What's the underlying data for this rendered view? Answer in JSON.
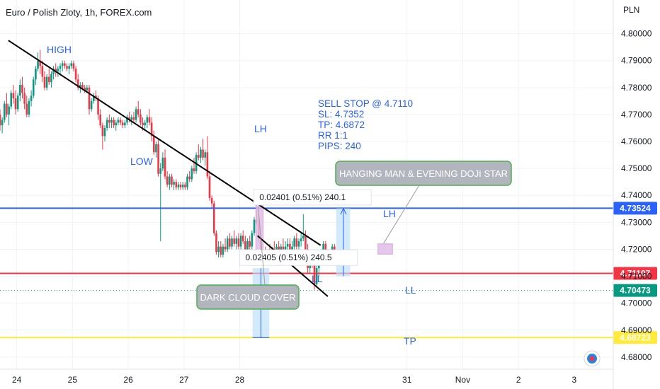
{
  "chart_data": {
    "type": "candlestick",
    "title": "Euro / Polish Zloty, 1h, FOREX.com",
    "price_axis_unit": "PLN",
    "y_ticks": [
      4.68,
      4.69,
      4.7,
      4.71,
      4.72,
      4.73,
      4.74,
      4.75,
      4.76,
      4.77,
      4.78,
      4.79,
      4.8
    ],
    "y_tick_labels": [
      "4.68000",
      "4.69000",
      "4.70000",
      "4.71000",
      "4.72000",
      "4.73000",
      "4.74000",
      "4.75000",
      "4.76000",
      "4.77000",
      "4.78000",
      "4.79000",
      "4.80000"
    ],
    "ylim": [
      4.6755,
      4.8125
    ],
    "x_ticks": [
      {
        "label": "24",
        "day": 24
      },
      {
        "label": "25",
        "day": 25
      },
      {
        "label": "26",
        "day": 26
      },
      {
        "label": "27",
        "day": 27
      },
      {
        "label": "28",
        "day": 28
      },
      {
        "label": "31",
        "day": 31
      },
      {
        "label": "Nov",
        "day": 32
      },
      {
        "label": "2",
        "day": 33
      },
      {
        "label": "3",
        "day": 34
      }
    ],
    "xlim": [
      23.7,
      34.7
    ],
    "price_lines": [
      {
        "name": "upper",
        "value": 4.73524,
        "label": "4.73524",
        "color": "#2962ff"
      },
      {
        "name": "sell-stop",
        "value": 4.71107,
        "label": "4.71107",
        "color": "#f23645"
      },
      {
        "name": "last",
        "value": 4.70473,
        "label": "4.70473",
        "color": "#089981"
      },
      {
        "name": "target",
        "value": 4.68723,
        "label": "4.68723",
        "color": "#ffeb3b"
      }
    ],
    "candles": [
      [
        23.7,
        4.77,
        4.772,
        4.764,
        4.766
      ],
      [
        23.74,
        4.766,
        4.769,
        4.763,
        4.768
      ],
      [
        23.78,
        4.768,
        4.775,
        4.767,
        4.774
      ],
      [
        23.82,
        4.774,
        4.778,
        4.769,
        4.77
      ],
      [
        23.86,
        4.77,
        4.774,
        4.766,
        4.773
      ],
      [
        23.9,
        4.773,
        4.779,
        4.772,
        4.778
      ],
      [
        23.94,
        4.778,
        4.781,
        4.774,
        4.776
      ],
      [
        23.98,
        4.776,
        4.779,
        4.77,
        4.772
      ],
      [
        24.02,
        4.772,
        4.778,
        4.771,
        4.777
      ],
      [
        24.06,
        4.777,
        4.783,
        4.775,
        4.781
      ],
      [
        24.1,
        4.781,
        4.784,
        4.776,
        4.778
      ],
      [
        24.14,
        4.778,
        4.78,
        4.772,
        4.774
      ],
      [
        24.18,
        4.774,
        4.777,
        4.769,
        4.77
      ],
      [
        24.22,
        4.77,
        4.776,
        4.769,
        4.775
      ],
      [
        24.26,
        4.775,
        4.779,
        4.773,
        4.777
      ],
      [
        24.3,
        4.777,
        4.784,
        4.776,
        4.783
      ],
      [
        24.34,
        4.783,
        4.788,
        4.781,
        4.787
      ],
      [
        24.38,
        4.787,
        4.793,
        4.786,
        4.79
      ],
      [
        24.42,
        4.79,
        4.794,
        4.785,
        4.788
      ],
      [
        24.46,
        4.788,
        4.79,
        4.782,
        4.784
      ],
      [
        24.5,
        4.784,
        4.786,
        4.779,
        4.78
      ],
      [
        24.54,
        4.78,
        4.785,
        4.779,
        4.784
      ],
      [
        24.58,
        4.784,
        4.787,
        4.781,
        4.782
      ],
      [
        24.62,
        4.782,
        4.786,
        4.78,
        4.785
      ],
      [
        24.66,
        4.785,
        4.788,
        4.783,
        4.787
      ],
      [
        24.7,
        4.787,
        4.789,
        4.784,
        4.786
      ],
      [
        24.74,
        4.786,
        4.788,
        4.784,
        4.787
      ],
      [
        24.78,
        4.787,
        4.789,
        4.785,
        4.788
      ],
      [
        24.82,
        4.788,
        4.79,
        4.786,
        4.789
      ],
      [
        24.86,
        4.789,
        4.79,
        4.787,
        4.788
      ],
      [
        24.9,
        4.788,
        4.789,
        4.786,
        4.787
      ],
      [
        24.94,
        4.787,
        4.789,
        4.785,
        4.788
      ],
      [
        24.98,
        4.788,
        4.79,
        4.787,
        4.789
      ],
      [
        25.02,
        4.789,
        4.79,
        4.786,
        4.787
      ],
      [
        25.06,
        4.787,
        4.788,
        4.782,
        4.783
      ],
      [
        25.1,
        4.783,
        4.785,
        4.779,
        4.78
      ],
      [
        25.14,
        4.78,
        4.782,
        4.778,
        4.781
      ],
      [
        25.18,
        4.781,
        4.782,
        4.779,
        4.78
      ],
      [
        25.22,
        4.78,
        4.781,
        4.778,
        4.779
      ],
      [
        25.26,
        4.779,
        4.781,
        4.778,
        4.78
      ],
      [
        25.3,
        4.78,
        4.781,
        4.77,
        4.772
      ],
      [
        25.34,
        4.772,
        4.776,
        4.771,
        4.775
      ],
      [
        25.38,
        4.775,
        4.778,
        4.774,
        4.777
      ],
      [
        25.42,
        4.777,
        4.779,
        4.775,
        4.776
      ],
      [
        25.46,
        4.776,
        4.777,
        4.768,
        4.77
      ],
      [
        25.5,
        4.77,
        4.772,
        4.765,
        4.766
      ],
      [
        25.54,
        4.766,
        4.767,
        4.757,
        4.762
      ],
      [
        25.58,
        4.762,
        4.766,
        4.76,
        4.765
      ],
      [
        25.62,
        4.765,
        4.769,
        4.764,
        4.768
      ],
      [
        25.66,
        4.768,
        4.77,
        4.765,
        4.767
      ],
      [
        25.7,
        4.767,
        4.769,
        4.765,
        4.768
      ],
      [
        25.74,
        4.768,
        4.769,
        4.765,
        4.766
      ],
      [
        25.78,
        4.766,
        4.768,
        4.764,
        4.767
      ],
      [
        25.82,
        4.767,
        4.769,
        4.766,
        4.768
      ],
      [
        25.86,
        4.768,
        4.769,
        4.766,
        4.767
      ],
      [
        25.9,
        4.767,
        4.768,
        4.765,
        4.766
      ],
      [
        25.94,
        4.766,
        4.768,
        4.765,
        4.767
      ],
      [
        25.98,
        4.767,
        4.77,
        4.766,
        4.769
      ],
      [
        26.02,
        4.769,
        4.771,
        4.767,
        4.768
      ],
      [
        26.06,
        4.768,
        4.77,
        4.766,
        4.769
      ],
      [
        26.1,
        4.769,
        4.771,
        4.767,
        4.768
      ],
      [
        26.14,
        4.768,
        4.773,
        4.767,
        4.772
      ],
      [
        26.18,
        4.772,
        4.775,
        4.769,
        4.77
      ],
      [
        26.22,
        4.77,
        4.772,
        4.766,
        4.767
      ],
      [
        26.26,
        4.767,
        4.769,
        4.764,
        4.766
      ],
      [
        26.3,
        4.766,
        4.768,
        4.764,
        4.767
      ],
      [
        26.34,
        4.767,
        4.77,
        4.765,
        4.769
      ],
      [
        26.38,
        4.769,
        4.772,
        4.766,
        4.767
      ],
      [
        26.42,
        4.767,
        4.769,
        4.76,
        4.762
      ],
      [
        26.46,
        4.762,
        4.764,
        4.755,
        4.756
      ],
      [
        26.5,
        4.756,
        4.76,
        4.754,
        4.759
      ],
      [
        26.54,
        4.759,
        4.761,
        4.747,
        4.748
      ],
      [
        26.58,
        4.748,
        4.752,
        4.723,
        4.75
      ],
      [
        26.62,
        4.75,
        4.756,
        4.749,
        4.754
      ],
      [
        26.66,
        4.754,
        4.757,
        4.746,
        4.747
      ],
      [
        26.7,
        4.747,
        4.749,
        4.743,
        4.744
      ],
      [
        26.74,
        4.744,
        4.748,
        4.742,
        4.747
      ],
      [
        26.78,
        4.747,
        4.748,
        4.743,
        4.744
      ],
      [
        26.82,
        4.744,
        4.746,
        4.742,
        4.745
      ],
      [
        26.86,
        4.745,
        4.746,
        4.742,
        4.743
      ],
      [
        26.9,
        4.743,
        4.745,
        4.742,
        4.744
      ],
      [
        26.94,
        4.744,
        4.745,
        4.742,
        4.743
      ],
      [
        26.98,
        4.743,
        4.745,
        4.742,
        4.744
      ],
      [
        27.02,
        4.744,
        4.745,
        4.742,
        4.743
      ],
      [
        27.06,
        4.743,
        4.748,
        4.742,
        4.747
      ],
      [
        27.1,
        4.747,
        4.749,
        4.745,
        4.746
      ],
      [
        27.14,
        4.746,
        4.751,
        4.745,
        4.75
      ],
      [
        27.18,
        4.75,
        4.754,
        4.748,
        4.749
      ],
      [
        27.22,
        4.749,
        4.756,
        4.748,
        4.755
      ],
      [
        27.26,
        4.755,
        4.759,
        4.753,
        4.754
      ],
      [
        27.3,
        4.754,
        4.758,
        4.752,
        4.757
      ],
      [
        27.34,
        4.757,
        4.761,
        4.753,
        4.754
      ],
      [
        27.38,
        4.754,
        4.757,
        4.751,
        4.756
      ],
      [
        27.42,
        4.756,
        4.762,
        4.746,
        4.747
      ],
      [
        27.46,
        4.747,
        4.749,
        4.738,
        4.739
      ],
      [
        27.5,
        4.739,
        4.74,
        4.735,
        4.737
      ],
      [
        27.54,
        4.737,
        4.738,
        4.725,
        4.726
      ],
      [
        27.58,
        4.726,
        4.727,
        4.718,
        4.719
      ],
      [
        27.62,
        4.719,
        4.723,
        4.717,
        4.721
      ],
      [
        27.66,
        4.721,
        4.723,
        4.717,
        4.718
      ],
      [
        27.7,
        4.718,
        4.722,
        4.717,
        4.721
      ],
      [
        27.74,
        4.721,
        4.724,
        4.719,
        4.72
      ],
      [
        27.78,
        4.72,
        4.725,
        4.719,
        4.724
      ],
      [
        27.82,
        4.724,
        4.726,
        4.72,
        4.721
      ],
      [
        27.86,
        4.721,
        4.725,
        4.72,
        4.724
      ],
      [
        27.9,
        4.724,
        4.727,
        4.721,
        4.722
      ],
      [
        27.94,
        4.722,
        4.725,
        4.72,
        4.724
      ],
      [
        27.98,
        4.724,
        4.726,
        4.72,
        4.721
      ],
      [
        28.02,
        4.721,
        4.726,
        4.72,
        4.725
      ],
      [
        28.06,
        4.725,
        4.727,
        4.722,
        4.723
      ],
      [
        28.1,
        4.723,
        4.725,
        4.719,
        4.72
      ],
      [
        28.14,
        4.72,
        4.724,
        4.719,
        4.723
      ],
      [
        28.18,
        4.723,
        4.725,
        4.72,
        4.721
      ],
      [
        28.22,
        4.721,
        4.727,
        4.72,
        4.726
      ],
      [
        28.26,
        4.726,
        4.732,
        4.725,
        4.731
      ],
      [
        28.3,
        4.731,
        4.737,
        4.729,
        4.73
      ],
      [
        28.34,
        4.73,
        4.732,
        4.723,
        4.724
      ],
      [
        28.38,
        4.724,
        4.726,
        4.714,
        4.716
      ],
      [
        28.42,
        4.716,
        4.72,
        4.714,
        4.719
      ],
      [
        28.46,
        4.719,
        4.721,
        4.715,
        4.716
      ],
      [
        28.5,
        4.716,
        4.72,
        4.715,
        4.719
      ],
      [
        28.54,
        4.719,
        4.722,
        4.717,
        4.718
      ],
      [
        28.58,
        4.718,
        4.721,
        4.715,
        4.72
      ],
      [
        28.62,
        4.72,
        4.723,
        4.718,
        4.719
      ],
      [
        28.66,
        4.719,
        4.722,
        4.717,
        4.721
      ],
      [
        28.7,
        4.721,
        4.723,
        4.718,
        4.719
      ],
      [
        28.74,
        4.719,
        4.722,
        4.717,
        4.721
      ],
      [
        28.78,
        4.721,
        4.724,
        4.719,
        4.72
      ],
      [
        28.82,
        4.72,
        4.723,
        4.718,
        4.721
      ],
      [
        28.86,
        4.721,
        4.724,
        4.719,
        4.722
      ],
      [
        28.9,
        4.722,
        4.724,
        4.719,
        4.72
      ],
      [
        28.94,
        4.72,
        4.723,
        4.718,
        4.721
      ],
      [
        28.98,
        4.721,
        4.725,
        4.72,
        4.724
      ],
      [
        29.02,
        4.724,
        4.726,
        4.72,
        4.721
      ],
      [
        29.06,
        4.721,
        4.724,
        4.72,
        4.723
      ],
      [
        29.1,
        4.723,
        4.726,
        4.721,
        4.724
      ],
      [
        29.14,
        4.724,
        4.733,
        4.723,
        4.725
      ],
      [
        29.18,
        4.725,
        4.727,
        4.719,
        4.72
      ],
      [
        29.22,
        4.72,
        4.722,
        4.711,
        4.713
      ],
      [
        29.26,
        4.713,
        4.717,
        4.711,
        4.716
      ],
      [
        29.3,
        4.716,
        4.718,
        4.713,
        4.714
      ],
      [
        29.34,
        4.714,
        4.716,
        4.705,
        4.707
      ],
      [
        29.38,
        4.707,
        4.714,
        4.706,
        4.713
      ],
      [
        29.42,
        4.713,
        4.716,
        4.71,
        4.715
      ],
      [
        29.46,
        4.715,
        4.72,
        4.714,
        4.719
      ],
      [
        29.5,
        4.719,
        4.723,
        4.717,
        4.722
      ],
      [
        29.54,
        4.722,
        4.723,
        4.716,
        4.717
      ],
      [
        29.58,
        4.717,
        4.72,
        4.715,
        4.716
      ],
      [
        29.62,
        4.716,
        4.719,
        4.714,
        4.718
      ],
      [
        29.66,
        4.718,
        4.722,
        4.717,
        4.721
      ],
      [
        29.7,
        4.721,
        4.722,
        4.716,
        4.717
      ],
      [
        29.74,
        4.717,
        4.719,
        4.715,
        4.716
      ],
      [
        29.78,
        4.716,
        4.718,
        4.715,
        4.717
      ],
      [
        29.82,
        4.717,
        4.719,
        4.716,
        4.718
      ],
      [
        29.86,
        4.718,
        4.719,
        4.715,
        4.717
      ],
      [
        29.9,
        4.717,
        4.718,
        4.716,
        4.7175
      ],
      [
        29.94,
        4.7175,
        4.718,
        4.716,
        4.717
      ],
      [
        29.98,
        4.717,
        4.718,
        4.716,
        4.7175
      ]
    ],
    "annotations": {
      "high": "HIGH",
      "low": "LOW",
      "lh1": "LH",
      "lh2": "LH",
      "ll1": "LL",
      "ll2": "LL",
      "tp": "TP",
      "trade_note": [
        "SELL STOP @ 4.7110",
        "SL: 4.7352",
        "TP: 4.6872",
        "RR 1:1",
        "PIPS: 240"
      ],
      "callout_hanging": "HANGING MAN & EVENING DOJI STAR",
      "callout_dark": "DARK CLOUD COVER",
      "measure_top": "0.02401 (0.51%) 240.1",
      "measure_bottom": "0.02405 (0.51%) 240.5"
    }
  },
  "colors": {
    "up": "#089981",
    "down": "#f23645",
    "trendline": "#000000",
    "annotation": "#2962ff",
    "callout_bg": "#b2b5be",
    "callout_border": "#4caf50",
    "pattern_box": "#e1bee7",
    "measure_fill": "#bbdefb"
  }
}
